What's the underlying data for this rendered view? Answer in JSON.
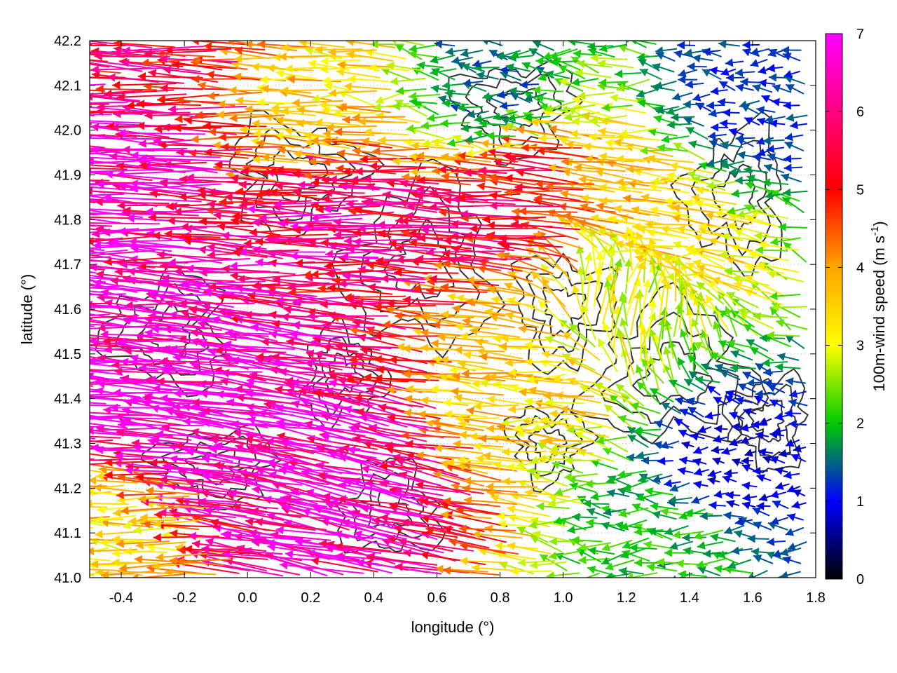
{
  "chart_data": {
    "type": "vector-field",
    "xlabel": "longitude (°)",
    "ylabel": "latitude (°)",
    "xlim": [
      -0.5,
      1.8
    ],
    "ylim": [
      41.0,
      42.2
    ],
    "xticks": [
      "-0.4",
      "-0.2",
      "0.0",
      "0.2",
      "0.4",
      "0.6",
      "0.8",
      "1.0",
      "1.2",
      "1.4",
      "1.6",
      "1.8"
    ],
    "xtick_values": [
      -0.4,
      -0.2,
      0.0,
      0.2,
      0.4,
      0.6,
      0.8,
      1.0,
      1.2,
      1.4,
      1.6,
      1.8
    ],
    "yticks": [
      "41.0",
      "41.1",
      "41.2",
      "41.3",
      "41.4",
      "41.5",
      "41.6",
      "41.7",
      "41.8",
      "41.9",
      "42.0",
      "42.1",
      "42.2"
    ],
    "ytick_values": [
      41.0,
      41.1,
      41.2,
      41.3,
      41.4,
      41.5,
      41.6,
      41.7,
      41.8,
      41.9,
      42.0,
      42.1,
      42.2
    ],
    "grid": true,
    "colorbar": {
      "label_main": "100m-wind speed (m s",
      "label_sup": "-1",
      "label_close": ")",
      "range": [
        0,
        7
      ],
      "ticks": [
        "0",
        "1",
        "2",
        "3",
        "4",
        "5",
        "6",
        "7"
      ],
      "tick_values": [
        0,
        1,
        2,
        3,
        4,
        5,
        6,
        7
      ],
      "colors": [
        "#000000",
        "#0000ff",
        "#00cc00",
        "#ffff00",
        "#ffa500",
        "#ff0000",
        "#ff00ff"
      ]
    },
    "wind_regions": [
      {
        "lon": -0.4,
        "lat": 41.45,
        "u": -7.0,
        "v": 0.4,
        "speed": 7.0
      },
      {
        "lon": 0.0,
        "lat": 41.35,
        "u": -7.0,
        "v": 0.9,
        "speed": 7.0
      },
      {
        "lon": 0.35,
        "lat": 41.2,
        "u": -6.5,
        "v": 1.3,
        "speed": 6.8
      },
      {
        "lon": -0.3,
        "lat": 41.9,
        "u": -6.8,
        "v": 0.2,
        "speed": 6.8
      },
      {
        "lon": 0.4,
        "lat": 41.8,
        "u": -6.0,
        "v": 0.25,
        "speed": 6.0
      },
      {
        "lon": 0.9,
        "lat": 41.82,
        "u": -5.5,
        "v": 0.3,
        "speed": 5.5
      },
      {
        "lon": 1.35,
        "lat": 41.8,
        "u": -3.5,
        "v": 0.4,
        "speed": 3.6
      },
      {
        "lon": -0.2,
        "lat": 42.15,
        "u": -5.5,
        "v": 0.2,
        "speed": 5.6
      },
      {
        "lon": 0.3,
        "lat": 42.05,
        "u": -3.5,
        "v": 0.2,
        "speed": 3.5
      },
      {
        "lon": 0.8,
        "lat": 42.1,
        "u": -1.5,
        "v": 0.2,
        "speed": 1.5
      },
      {
        "lon": 1.6,
        "lat": 42.05,
        "u": -1.2,
        "v": 0.1,
        "speed": 1.2
      },
      {
        "lon": 1.55,
        "lat": 41.25,
        "u": -0.8,
        "v": 0.0,
        "speed": 0.8
      },
      {
        "lon": 1.4,
        "lat": 41.07,
        "u": -2.0,
        "v": 0.0,
        "speed": 2.0
      },
      {
        "lon": 0.95,
        "lat": 41.45,
        "u": -3.5,
        "v": 0.2,
        "speed": 3.5
      },
      {
        "lon": 1.2,
        "lat": 41.6,
        "u": 0.6,
        "v": 2.8,
        "speed": 2.9
      },
      {
        "lon": -0.35,
        "lat": 41.1,
        "u": -3.5,
        "v": 0.0,
        "speed": 3.5
      }
    ]
  }
}
